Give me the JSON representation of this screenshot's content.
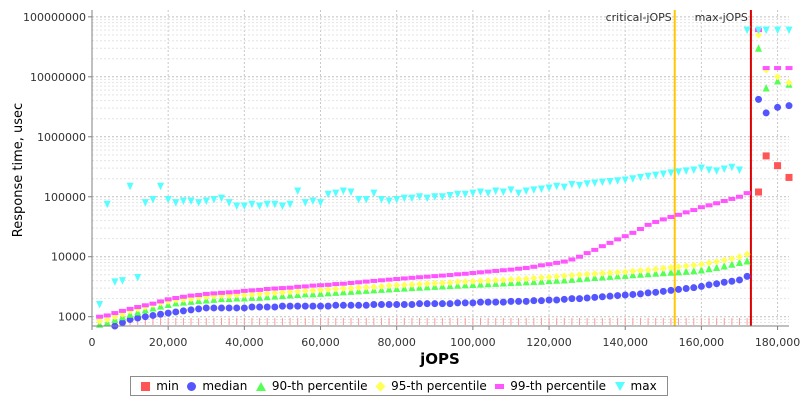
{
  "chart_data": {
    "type": "scatter",
    "xlabel": "jOPS",
    "ylabel": "Response time, usec",
    "xlim": [
      0,
      183000
    ],
    "ylim": [
      700,
      130000000
    ],
    "y_scale": "log",
    "grid": true,
    "legend_position": "bottom",
    "x_ticks": [
      0,
      20000,
      40000,
      60000,
      80000,
      100000,
      120000,
      140000,
      160000,
      180000
    ],
    "x_tick_labels": [
      "0",
      "20,000",
      "40,000",
      "60,000",
      "80,000",
      "100,000",
      "120,000",
      "140,000",
      "160,000",
      "180,000"
    ],
    "y_ticks": [
      1000,
      10000,
      100000,
      1000000,
      10000000,
      100000000
    ],
    "y_tick_labels": [
      "1000",
      "10000",
      "100000",
      "1000000",
      "10000000",
      "100000000"
    ],
    "annotations": [
      {
        "label": "critical-jOPS",
        "x": 153000,
        "color": "#ffc800"
      },
      {
        "label": "max-jOPS",
        "x": 173000,
        "color": "#dd0000"
      }
    ],
    "series": [
      {
        "name": "min",
        "color": "#ff5555",
        "marker": "square",
        "x": [
          175000,
          177000,
          180000,
          183000
        ],
        "y": [
          120000,
          480000,
          330000,
          210000
        ]
      },
      {
        "name": "median",
        "color": "#5555ff",
        "marker": "circle",
        "x": [
          2000,
          4000,
          6000,
          8000,
          10000,
          12000,
          14000,
          16000,
          18000,
          20000,
          22000,
          24000,
          26000,
          28000,
          30000,
          32000,
          34000,
          36000,
          38000,
          40000,
          42000,
          44000,
          46000,
          48000,
          50000,
          52000,
          54000,
          56000,
          58000,
          60000,
          62000,
          64000,
          66000,
          68000,
          70000,
          72000,
          74000,
          76000,
          78000,
          80000,
          82000,
          84000,
          86000,
          88000,
          90000,
          92000,
          94000,
          96000,
          98000,
          100000,
          102000,
          104000,
          106000,
          108000,
          110000,
          112000,
          114000,
          116000,
          118000,
          120000,
          122000,
          124000,
          126000,
          128000,
          130000,
          132000,
          134000,
          136000,
          138000,
          140000,
          142000,
          144000,
          146000,
          148000,
          150000,
          152000,
          154000,
          156000,
          158000,
          160000,
          162000,
          164000,
          166000,
          168000,
          170000,
          172000,
          175000,
          177000,
          180000,
          183000
        ],
        "y": [
          600,
          650,
          700,
          800,
          900,
          950,
          1000,
          1050,
          1100,
          1150,
          1200,
          1250,
          1300,
          1350,
          1400,
          1400,
          1400,
          1400,
          1400,
          1400,
          1450,
          1450,
          1450,
          1450,
          1500,
          1500,
          1500,
          1500,
          1500,
          1500,
          1500,
          1550,
          1550,
          1550,
          1550,
          1550,
          1600,
          1600,
          1600,
          1600,
          1600,
          1600,
          1650,
          1650,
          1650,
          1650,
          1650,
          1700,
          1700,
          1700,
          1750,
          1750,
          1750,
          1750,
          1800,
          1800,
          1800,
          1850,
          1850,
          1900,
          1900,
          1950,
          2000,
          2000,
          2050,
          2100,
          2150,
          2200,
          2250,
          2300,
          2350,
          2400,
          2500,
          2550,
          2650,
          2750,
          2850,
          2950,
          3050,
          3200,
          3400,
          3550,
          3750,
          3900,
          4100,
          4700,
          4200000,
          2500000,
          3100000,
          3300000
        ]
      },
      {
        "name": "90-th percentile",
        "color": "#55ff55",
        "marker": "triangle-up",
        "x": [
          2000,
          4000,
          6000,
          8000,
          10000,
          12000,
          14000,
          16000,
          18000,
          20000,
          22000,
          24000,
          26000,
          28000,
          30000,
          32000,
          34000,
          36000,
          38000,
          40000,
          42000,
          44000,
          46000,
          48000,
          50000,
          52000,
          54000,
          56000,
          58000,
          60000,
          62000,
          64000,
          66000,
          68000,
          70000,
          72000,
          74000,
          76000,
          78000,
          80000,
          82000,
          84000,
          86000,
          88000,
          90000,
          92000,
          94000,
          96000,
          98000,
          100000,
          102000,
          104000,
          106000,
          108000,
          110000,
          112000,
          114000,
          116000,
          118000,
          120000,
          122000,
          124000,
          126000,
          128000,
          130000,
          132000,
          134000,
          136000,
          138000,
          140000,
          142000,
          144000,
          146000,
          148000,
          150000,
          152000,
          154000,
          156000,
          158000,
          160000,
          162000,
          164000,
          166000,
          168000,
          170000,
          172000,
          175000,
          177000,
          180000,
          183000
        ],
        "y": [
          750,
          800,
          900,
          1000,
          1100,
          1200,
          1300,
          1400,
          1500,
          1600,
          1700,
          1750,
          1800,
          1850,
          1900,
          1950,
          2000,
          2000,
          2050,
          2050,
          2100,
          2100,
          2150,
          2200,
          2250,
          2300,
          2350,
          2400,
          2400,
          2450,
          2500,
          2550,
          2600,
          2650,
          2700,
          2750,
          2800,
          2850,
          2900,
          2950,
          3000,
          3050,
          3100,
          3150,
          3200,
          3250,
          3300,
          3350,
          3400,
          3450,
          3500,
          3550,
          3600,
          3650,
          3700,
          3750,
          3800,
          3850,
          3900,
          4000,
          4050,
          4100,
          4200,
          4300,
          4400,
          4500,
          4600,
          4700,
          4800,
          4900,
          5000,
          5100,
          5200,
          5300,
          5400,
          5500,
          5600,
          5700,
          5800,
          6000,
          6300,
          6600,
          7000,
          7500,
          8000,
          8500,
          30000000,
          6500000,
          8500000,
          7500000
        ]
      },
      {
        "name": "95-th percentile",
        "color": "#ffff55",
        "marker": "diamond",
        "x": [
          2000,
          4000,
          6000,
          8000,
          10000,
          12000,
          14000,
          16000,
          18000,
          20000,
          22000,
          24000,
          26000,
          28000,
          30000,
          32000,
          34000,
          36000,
          38000,
          40000,
          42000,
          44000,
          46000,
          48000,
          50000,
          52000,
          54000,
          56000,
          58000,
          60000,
          62000,
          64000,
          66000,
          68000,
          70000,
          72000,
          74000,
          76000,
          78000,
          80000,
          82000,
          84000,
          86000,
          88000,
          90000,
          92000,
          94000,
          96000,
          98000,
          100000,
          102000,
          104000,
          106000,
          108000,
          110000,
          112000,
          114000,
          116000,
          118000,
          120000,
          122000,
          124000,
          126000,
          128000,
          130000,
          132000,
          134000,
          136000,
          138000,
          140000,
          142000,
          144000,
          146000,
          148000,
          150000,
          152000,
          154000,
          156000,
          158000,
          160000,
          162000,
          164000,
          166000,
          168000,
          170000,
          172000,
          175000,
          177000,
          180000,
          183000
        ],
        "y": [
          850,
          900,
          1000,
          1100,
          1250,
          1350,
          1450,
          1600,
          1700,
          1800,
          1900,
          1950,
          2000,
          2100,
          2150,
          2200,
          2250,
          2250,
          2300,
          2300,
          2350,
          2400,
          2450,
          2500,
          2550,
          2600,
          2650,
          2700,
          2750,
          2800,
          2850,
          2900,
          2950,
          3000,
          3050,
          3100,
          3150,
          3200,
          3300,
          3350,
          3400,
          3450,
          3500,
          3550,
          3600,
          3650,
          3700,
          3800,
          3850,
          3900,
          3950,
          4000,
          4050,
          4100,
          4200,
          4250,
          4300,
          4400,
          4500,
          4600,
          4700,
          4800,
          4900,
          5000,
          5100,
          5200,
          5300,
          5400,
          5500,
          5600,
          5750,
          5900,
          6000,
          6200,
          6400,
          6600,
          6800,
          7000,
          7200,
          7500,
          7900,
          8300,
          8800,
          9300,
          10000,
          11000,
          50000000,
          13000000,
          10000000,
          8000000
        ]
      },
      {
        "name": "99-th percentile",
        "color": "#ff55ff",
        "marker": "rect",
        "x": [
          2000,
          4000,
          6000,
          8000,
          10000,
          12000,
          14000,
          16000,
          18000,
          20000,
          22000,
          24000,
          26000,
          28000,
          30000,
          32000,
          34000,
          36000,
          38000,
          40000,
          42000,
          44000,
          46000,
          48000,
          50000,
          52000,
          54000,
          56000,
          58000,
          60000,
          62000,
          64000,
          66000,
          68000,
          70000,
          72000,
          74000,
          76000,
          78000,
          80000,
          82000,
          84000,
          86000,
          88000,
          90000,
          92000,
          94000,
          96000,
          98000,
          100000,
          102000,
          104000,
          106000,
          108000,
          110000,
          112000,
          114000,
          116000,
          118000,
          120000,
          122000,
          124000,
          126000,
          128000,
          130000,
          132000,
          134000,
          136000,
          138000,
          140000,
          142000,
          144000,
          146000,
          148000,
          150000,
          152000,
          154000,
          156000,
          158000,
          160000,
          162000,
          164000,
          166000,
          168000,
          170000,
          172000,
          175000,
          177000,
          180000,
          183000
        ],
        "y": [
          1000,
          1050,
          1150,
          1250,
          1350,
          1450,
          1550,
          1650,
          1800,
          1950,
          2050,
          2150,
          2250,
          2300,
          2400,
          2450,
          2500,
          2550,
          2600,
          2700,
          2750,
          2800,
          2900,
          2950,
          3000,
          3050,
          3150,
          3200,
          3300,
          3350,
          3400,
          3500,
          3550,
          3650,
          3750,
          3850,
          3950,
          4050,
          4150,
          4250,
          4350,
          4450,
          4550,
          4650,
          4750,
          4850,
          4950,
          5100,
          5200,
          5350,
          5500,
          5650,
          5800,
          5950,
          6100,
          6300,
          6500,
          6800,
          7200,
          7500,
          7900,
          8300,
          9000,
          10000,
          11500,
          13000,
          15000,
          17000,
          19500,
          22000,
          25000,
          29000,
          34000,
          38000,
          42000,
          46000,
          50000,
          55000,
          60000,
          67000,
          72000,
          78000,
          85000,
          92000,
          100000,
          115000,
          60000000,
          14000000,
          14000000,
          14000000
        ]
      },
      {
        "name": "max",
        "color": "#55ffff",
        "marker": "triangle-down",
        "x": [
          2000,
          4000,
          6000,
          8000,
          10000,
          12000,
          14000,
          16000,
          18000,
          20000,
          22000,
          24000,
          26000,
          28000,
          30000,
          32000,
          34000,
          36000,
          38000,
          40000,
          42000,
          44000,
          46000,
          48000,
          50000,
          52000,
          54000,
          56000,
          58000,
          60000,
          62000,
          64000,
          66000,
          68000,
          70000,
          72000,
          74000,
          76000,
          78000,
          80000,
          82000,
          84000,
          86000,
          88000,
          90000,
          92000,
          94000,
          96000,
          98000,
          100000,
          102000,
          104000,
          106000,
          108000,
          110000,
          112000,
          114000,
          116000,
          118000,
          120000,
          122000,
          124000,
          126000,
          128000,
          130000,
          132000,
          134000,
          136000,
          138000,
          140000,
          142000,
          144000,
          146000,
          148000,
          150000,
          152000,
          154000,
          156000,
          158000,
          160000,
          162000,
          164000,
          166000,
          168000,
          170000,
          172000,
          175000,
          177000,
          180000,
          183000
        ],
        "y": [
          1600,
          75000,
          3800,
          4000,
          150000,
          4500,
          80000,
          90000,
          150000,
          90000,
          80000,
          85000,
          85000,
          80000,
          85000,
          90000,
          95000,
          80000,
          70000,
          70000,
          75000,
          70000,
          75000,
          75000,
          70000,
          75000,
          125000,
          80000,
          85000,
          80000,
          110000,
          115000,
          125000,
          120000,
          90000,
          90000,
          115000,
          90000,
          85000,
          90000,
          95000,
          95000,
          100000,
          95000,
          100000,
          100000,
          105000,
          110000,
          110000,
          115000,
          120000,
          115000,
          125000,
          120000,
          130000,
          115000,
          125000,
          130000,
          135000,
          140000,
          150000,
          145000,
          160000,
          155000,
          165000,
          170000,
          175000,
          180000,
          185000,
          190000,
          200000,
          210000,
          220000,
          230000,
          240000,
          250000,
          260000,
          270000,
          280000,
          300000,
          280000,
          270000,
          290000,
          310000,
          280000,
          60000000,
          60000000,
          60000000,
          60000000,
          60000000
        ]
      }
    ]
  }
}
